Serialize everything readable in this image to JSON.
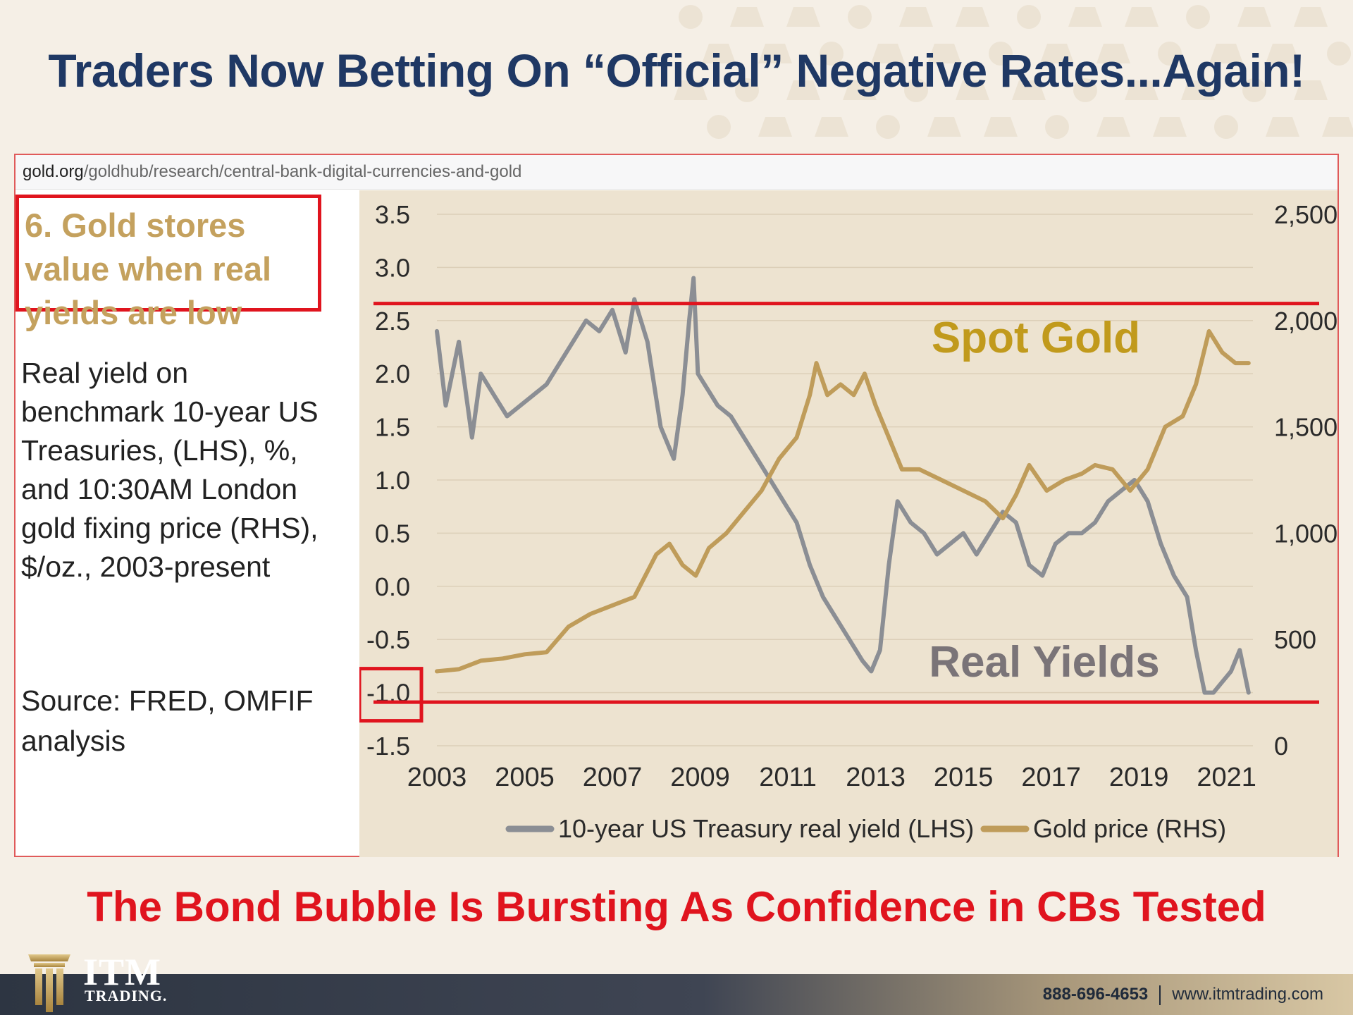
{
  "slide": {
    "headline": "Traders Now Betting On “Official” Negative Rates...Again!",
    "url_host": "gold.org",
    "url_path": "/goldhub/research/central-bank-digital-currencies-and-gold",
    "side_title": "6. Gold stores value when real yields are low",
    "side_desc": "Real yield on benchmark 10-year US Treasuries, (LHS), %, and 10:30AM London gold fixing price (RHS), $/oz., 2003-present",
    "side_source": "Source: FRED, OMFIF analysis",
    "footer_title": "The Bond Bubble Is Bursting As Confidence in CBs Tested",
    "brand_word": "ITM",
    "brand_sub": "TRADING.",
    "phone": "888-696-4653",
    "website": "www.itmtrading.com"
  },
  "colors": {
    "navy": "#1f3864",
    "red": "#e0141e",
    "gold_text": "#c4a15e",
    "gold_line": "#bf9c5a",
    "yield_line": "#8b8e94",
    "spot_gold_label": "#c19a1c",
    "real_yields_label": "#7a7478",
    "chart_bg": "#ede3d0"
  },
  "chart_data": {
    "type": "line",
    "title": "",
    "x_ticks": [
      "2003",
      "2005",
      "2007",
      "2009",
      "2011",
      "2013",
      "2015",
      "2017",
      "2019",
      "2021"
    ],
    "xlim": [
      2003,
      2021.6
    ],
    "ylabel_left": "",
    "ylabel_right": "",
    "y_left_ticks": [
      "3.5",
      "3.0",
      "2.5",
      "2.0",
      "1.5",
      "1.0",
      "0.5",
      "0.0",
      "-0.5",
      "-1.0",
      "-1.5"
    ],
    "y_left_lim": [
      -1.5,
      3.5
    ],
    "y_right_ticks": [
      "2,500",
      "2,000",
      "1,500",
      "1,000",
      "500",
      "0"
    ],
    "y_right_lim": [
      0,
      2500
    ],
    "grid": true,
    "legend_position": "bottom",
    "series": [
      {
        "name": "10-year US Treasury real yield (LHS)",
        "axis": "left",
        "color": "#8b8e94",
        "x": [
          2003.0,
          2003.2,
          2003.5,
          2003.8,
          2004.0,
          2004.3,
          2004.6,
          2004.9,
          2005.2,
          2005.5,
          2005.8,
          2006.1,
          2006.4,
          2006.7,
          2007.0,
          2007.3,
          2007.5,
          2007.8,
          2008.1,
          2008.4,
          2008.6,
          2008.75,
          2008.85,
          2008.95,
          2009.1,
          2009.4,
          2009.7,
          2010.0,
          2010.3,
          2010.6,
          2010.9,
          2011.2,
          2011.5,
          2011.8,
          2012.1,
          2012.4,
          2012.7,
          2012.9,
          2013.1,
          2013.3,
          2013.5,
          2013.8,
          2014.1,
          2014.4,
          2014.7,
          2015.0,
          2015.3,
          2015.6,
          2015.9,
          2016.2,
          2016.5,
          2016.8,
          2017.1,
          2017.4,
          2017.7,
          2018.0,
          2018.3,
          2018.6,
          2018.9,
          2019.2,
          2019.5,
          2019.8,
          2020.1,
          2020.3,
          2020.5,
          2020.7,
          2020.9,
          2021.1,
          2021.3,
          2021.5
        ],
        "values": [
          2.4,
          1.7,
          2.3,
          1.4,
          2.0,
          1.8,
          1.6,
          1.7,
          1.8,
          1.9,
          2.1,
          2.3,
          2.5,
          2.4,
          2.6,
          2.2,
          2.7,
          2.3,
          1.5,
          1.2,
          1.8,
          2.5,
          2.9,
          2.0,
          1.9,
          1.7,
          1.6,
          1.4,
          1.2,
          1.0,
          0.8,
          0.6,
          0.2,
          -0.1,
          -0.3,
          -0.5,
          -0.7,
          -0.8,
          -0.6,
          0.2,
          0.8,
          0.6,
          0.5,
          0.3,
          0.4,
          0.5,
          0.3,
          0.5,
          0.7,
          0.6,
          0.2,
          0.1,
          0.4,
          0.5,
          0.5,
          0.6,
          0.8,
          0.9,
          1.0,
          0.8,
          0.4,
          0.1,
          -0.1,
          -0.6,
          -1.0,
          -1.0,
          -0.9,
          -0.8,
          -0.6,
          -1.0
        ]
      },
      {
        "name": "Gold price (RHS)",
        "axis": "right",
        "color": "#bf9c5a",
        "x": [
          2003.0,
          2003.5,
          2004.0,
          2004.5,
          2005.0,
          2005.5,
          2006.0,
          2006.5,
          2007.0,
          2007.5,
          2008.0,
          2008.3,
          2008.6,
          2008.9,
          2009.2,
          2009.6,
          2010.0,
          2010.4,
          2010.8,
          2011.2,
          2011.5,
          2011.65,
          2011.9,
          2012.2,
          2012.5,
          2012.75,
          2013.0,
          2013.3,
          2013.6,
          2014.0,
          2014.5,
          2015.0,
          2015.5,
          2015.9,
          2016.2,
          2016.5,
          2016.9,
          2017.3,
          2017.7,
          2018.0,
          2018.4,
          2018.8,
          2019.2,
          2019.6,
          2020.0,
          2020.3,
          2020.6,
          2020.9,
          2021.2,
          2021.5
        ],
        "values": [
          350,
          360,
          400,
          410,
          430,
          440,
          560,
          620,
          660,
          700,
          900,
          950,
          850,
          800,
          930,
          1000,
          1100,
          1200,
          1350,
          1450,
          1650,
          1800,
          1650,
          1700,
          1650,
          1750,
          1600,
          1450,
          1300,
          1300,
          1250,
          1200,
          1150,
          1070,
          1180,
          1320,
          1200,
          1250,
          1280,
          1320,
          1300,
          1200,
          1300,
          1500,
          1550,
          1700,
          1950,
          1850,
          1800,
          1800
        ]
      }
    ],
    "annotations": [
      "Spot Gold",
      "Real Yields"
    ],
    "reference_lines_left": [
      2.66,
      -1.09
    ],
    "highlighted_tick": "-1.0"
  }
}
